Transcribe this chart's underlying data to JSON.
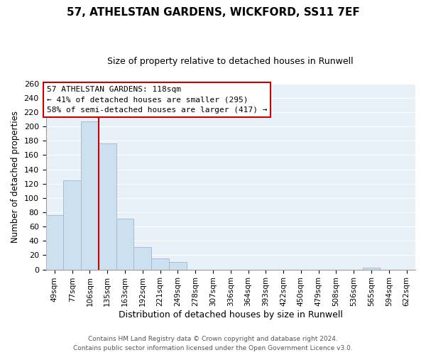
{
  "title": "57, ATHELSTAN GARDENS, WICKFORD, SS11 7EF",
  "subtitle": "Size of property relative to detached houses in Runwell",
  "xlabel": "Distribution of detached houses by size in Runwell",
  "ylabel": "Number of detached properties",
  "bar_labels": [
    "49sqm",
    "77sqm",
    "106sqm",
    "135sqm",
    "163sqm",
    "192sqm",
    "221sqm",
    "249sqm",
    "278sqm",
    "307sqm",
    "336sqm",
    "364sqm",
    "393sqm",
    "422sqm",
    "450sqm",
    "479sqm",
    "508sqm",
    "536sqm",
    "565sqm",
    "594sqm",
    "622sqm"
  ],
  "bar_values": [
    76,
    125,
    207,
    176,
    71,
    31,
    15,
    11,
    0,
    0,
    0,
    0,
    0,
    0,
    0,
    0,
    0,
    0,
    3,
    0,
    0
  ],
  "bar_color": "#cce0f0",
  "bar_edge_color": "#aabbd0",
  "ylim": [
    0,
    260
  ],
  "yticks": [
    0,
    20,
    40,
    60,
    80,
    100,
    120,
    140,
    160,
    180,
    200,
    220,
    240,
    260
  ],
  "vline_x": 2.5,
  "vline_color": "#cc0000",
  "annotation_text": "57 ATHELSTAN GARDENS: 118sqm\n← 41% of detached houses are smaller (295)\n58% of semi-detached houses are larger (417) →",
  "annotation_box_color": "#ffffff",
  "annotation_box_edge": "#cc0000",
  "footer_line1": "Contains HM Land Registry data © Crown copyright and database right 2024.",
  "footer_line2": "Contains public sector information licensed under the Open Government Licence v3.0.",
  "fig_width": 6.0,
  "fig_height": 5.0,
  "background_color": "#ffffff",
  "plot_bg_color": "#e8f0f8",
  "grid_color": "#ffffff"
}
